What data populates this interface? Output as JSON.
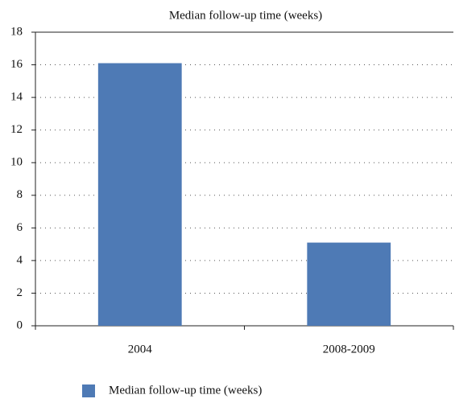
{
  "chart_data": {
    "type": "bar",
    "title": "Median follow-up time (weeks)",
    "categories": [
      "2004",
      "2008-2009"
    ],
    "series": [
      {
        "name": "Median follow-up time (weeks)",
        "color": "#4e7ab5",
        "values": [
          16.1,
          5.1
        ]
      }
    ],
    "ylim": [
      0,
      18
    ],
    "yticks": [
      0,
      2,
      4,
      6,
      8,
      10,
      12,
      14,
      16,
      18
    ],
    "grid": true,
    "legend": "bottom"
  }
}
